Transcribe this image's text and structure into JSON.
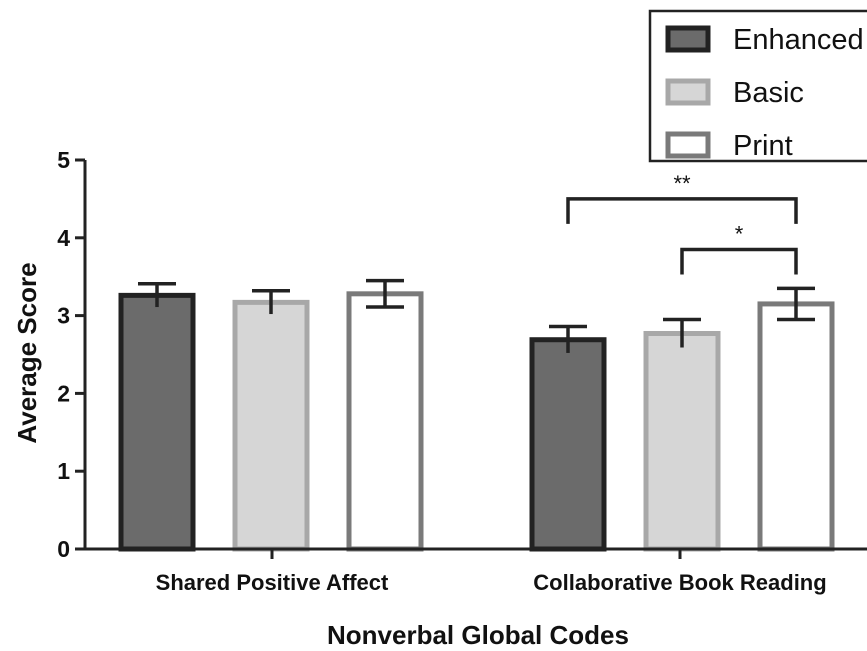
{
  "chart_data": {
    "type": "bar",
    "xlabel": "Nonverbal Global Codes",
    "ylabel": "Average Score",
    "ylim": [
      0,
      5
    ],
    "yticks": [
      0,
      1,
      2,
      3,
      4,
      5
    ],
    "categories": [
      "Shared Positive Affect",
      "Collaborative Book Reading"
    ],
    "series": [
      {
        "name": "Enhanced",
        "values": [
          3.26,
          2.69
        ],
        "errors": [
          0.15,
          0.17
        ],
        "fill": "#6b6b6b",
        "stroke": "#222222"
      },
      {
        "name": "Basic",
        "values": [
          3.17,
          2.77
        ],
        "errors": [
          0.15,
          0.18
        ],
        "fill": "#d6d6d6",
        "stroke": "#a8a8a8"
      },
      {
        "name": "Print",
        "values": [
          3.28,
          3.15
        ],
        "errors": [
          0.17,
          0.2
        ],
        "fill": "#ffffff",
        "stroke": "#7a7a7a"
      }
    ],
    "legend": "top-right",
    "grid": false,
    "annotations": [
      {
        "label": "**",
        "category": "Collaborative Book Reading",
        "from": "Enhanced",
        "to": "Print",
        "level": 4.5
      },
      {
        "label": "*",
        "category": "Collaborative Book Reading",
        "from": "Basic",
        "to": "Print",
        "level": 3.85
      }
    ]
  }
}
